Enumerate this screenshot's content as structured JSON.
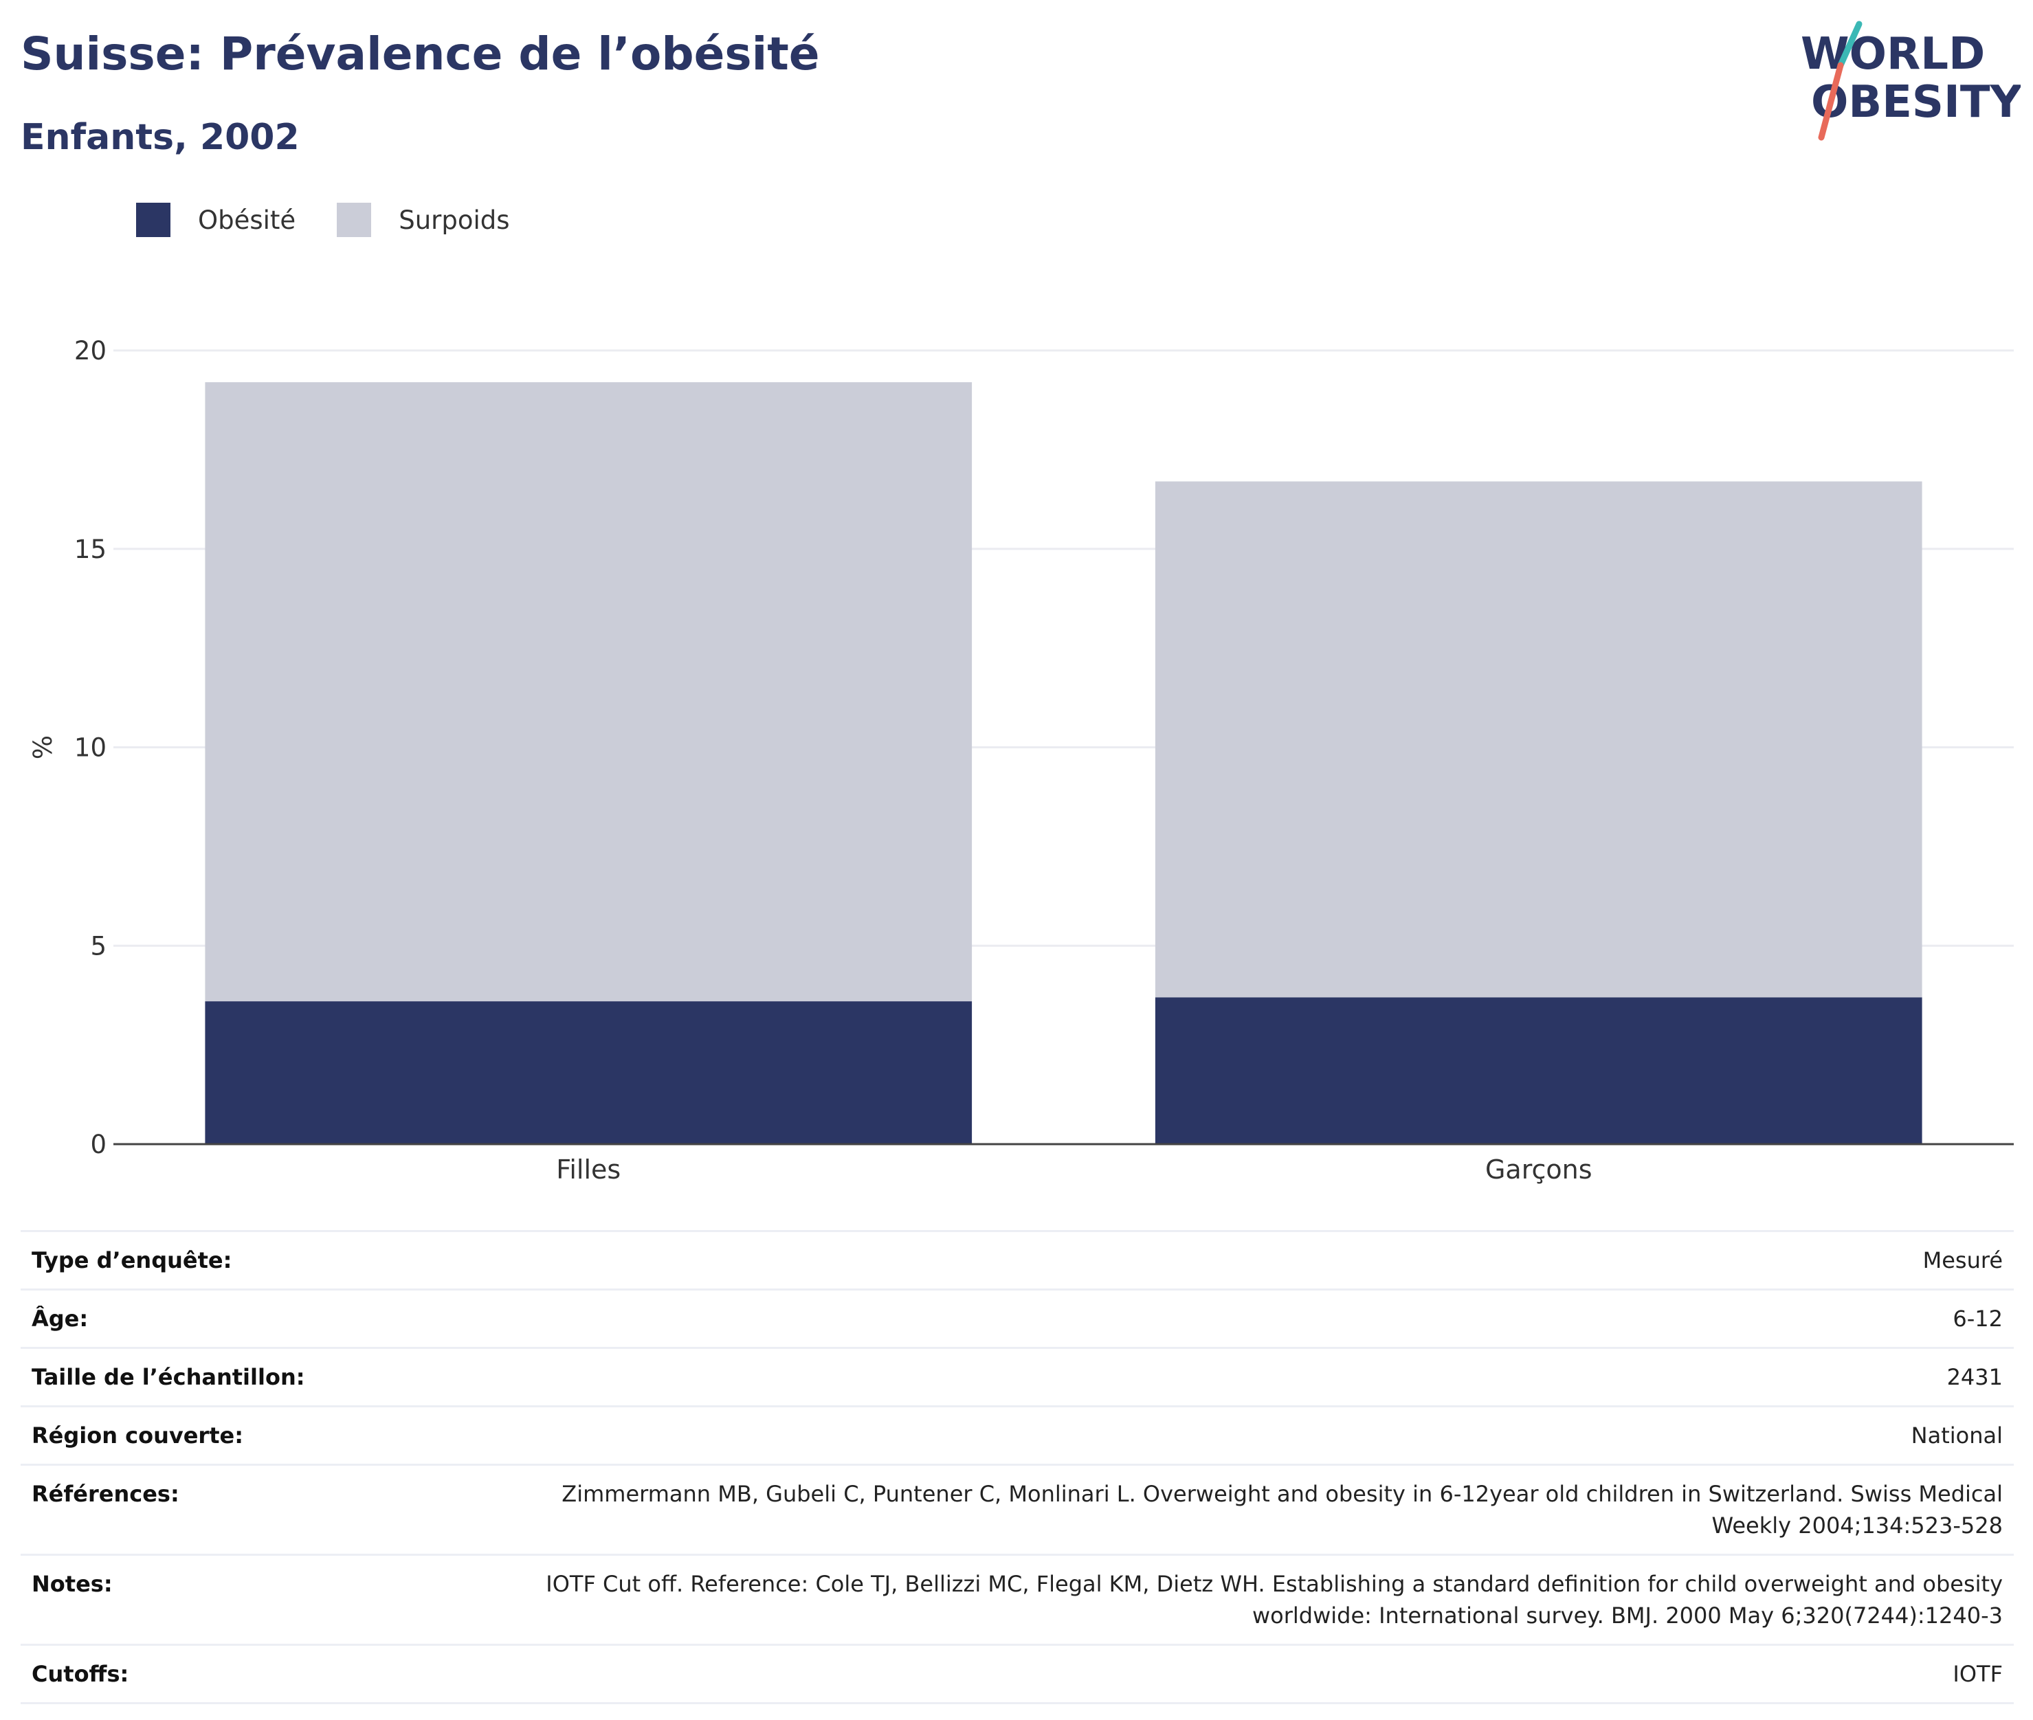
{
  "header": {
    "title": "Suisse: Prévalence de l’obésité",
    "subtitle": "Enfants, 2002"
  },
  "logo": {
    "line1": "WORLD",
    "line2": "OBESITY"
  },
  "colors": {
    "obesity": "#2b3664",
    "overweight": "#cbcdd8",
    "title": "#2b3664"
  },
  "chart_data": {
    "type": "bar",
    "stacked": true,
    "categories": [
      "Filles",
      "Garçons"
    ],
    "series": [
      {
        "name": "Obésité",
        "values": [
          3.6,
          3.7
        ],
        "color": "#2b3664"
      },
      {
        "name": "Surpoids",
        "values": [
          15.6,
          13.0
        ],
        "color": "#cbcdd8"
      }
    ],
    "ylabel": "%",
    "ylim": [
      0,
      20
    ],
    "yticks": [
      0,
      5,
      10,
      15,
      20
    ],
    "grid": true,
    "legend_position": "top-left"
  },
  "meta": [
    {
      "label": "Type d’enquête:",
      "value": "Mesuré"
    },
    {
      "label": "Âge:",
      "value": "6-12"
    },
    {
      "label": "Taille de l’échantillon:",
      "value": "2431"
    },
    {
      "label": "Région couverte:",
      "value": "National"
    },
    {
      "label": "Références:",
      "value": "Zimmermann MB, Gubeli C, Puntener C, Monlinari L. Overweight and obesity in 6-12year old children in Switzerland. Swiss Medical Weekly 2004;134:523-528"
    },
    {
      "label": "Notes:",
      "value": "IOTF Cut off. Reference: Cole TJ, Bellizzi MC, Flegal KM, Dietz WH. Establishing a standard definition for child overweight and obesity worldwide: International survey. BMJ. 2000 May 6;320(7244):1240-3"
    },
    {
      "label": "Cutoffs:",
      "value": "IOTF"
    }
  ]
}
